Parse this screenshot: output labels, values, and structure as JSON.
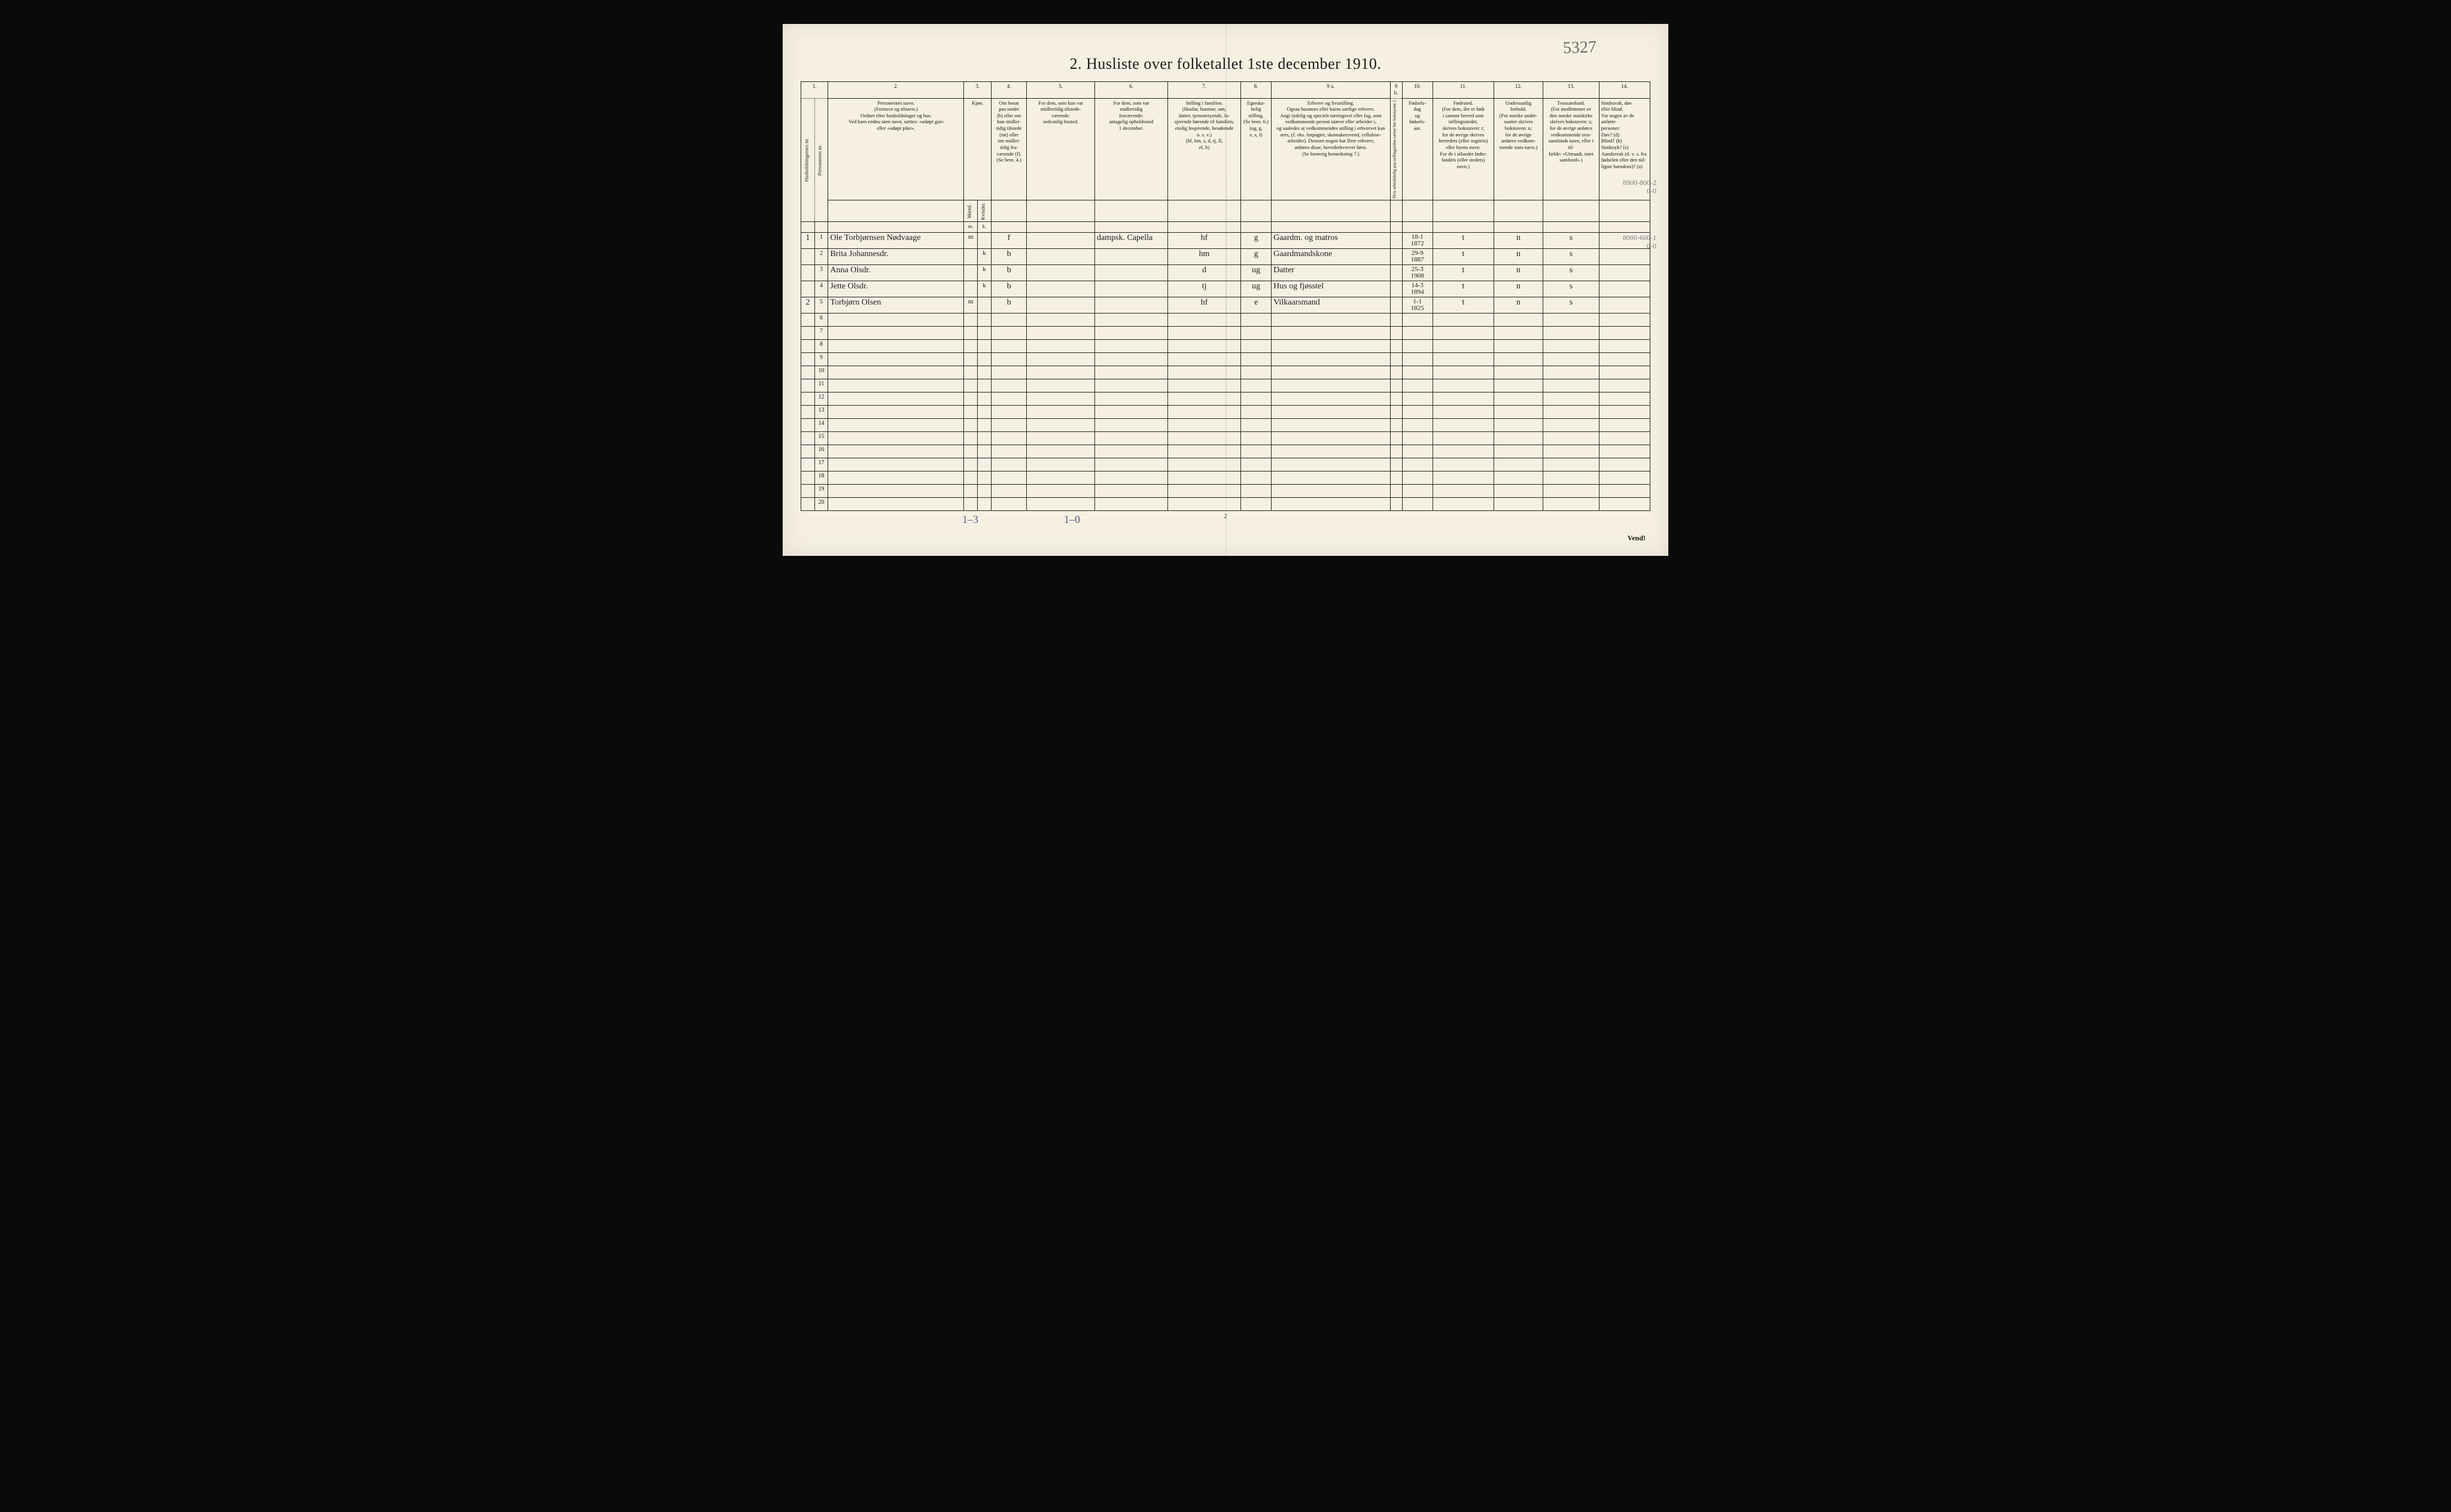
{
  "document": {
    "corner_note": "5327",
    "title": "2.  Husliste over folketallet 1ste december 1910.",
    "page_number": "2",
    "vend": "Vend!",
    "bottom_annotation_left": "1–3",
    "bottom_annotation_right": "1–0",
    "margin_annotation_1": "8900-800-2",
    "margin_annotation_1b": "0-0",
    "margin_annotation_2": "8000-600-1",
    "margin_annotation_2b": "0-0"
  },
  "columns": {
    "nums": [
      "1.",
      "",
      "2.",
      "3.",
      "4.",
      "5.",
      "6.",
      "7.",
      "8.",
      "9 a.",
      "9 b.",
      "10.",
      "11.",
      "12.",
      "13.",
      "14."
    ],
    "h1": "",
    "h2": "",
    "h3": "Personernes navn.\n(Fornavn og tilnavn.)\nOrdnet efter husholdninger og hus.\nVed barn endnu uten navn, sættes: «udøpt gut»\neller «udøpt pike».",
    "h4": "Kjøn.",
    "h5": "Om bosat\npaa stedet\n(b) eller om\nkun midler-\ntidig tilstede\n(mt) eller\nom midler-\ntidig fra-\nværende (f).\n(Se bem. 4.)",
    "h6": "For dem, som kun var\nmidlertidig tilstede-\nværende:\nsedvanlig bosted.",
    "h7": "For dem, som var\nmidlertidig\nfraværende:\nantagelig opholdssted\n1 december.",
    "h8": "Stilling i familien.\n(Husfar, husmor, søn,\ndatter, tjenestetyende, lo-\nsjerende hørende til familien,\nenslig losjerende, besøkende\no. s. v.)\n(hf, hm, s, d, tj, fl,\nel, b)",
    "h9": "Egteska-\nbelig\nstilling.\n(Se bem. 6.)\n(ug, g,\ne, s, f)",
    "h10": "Erhverv og livsstilling.\nOgsaa husmors eller barns særlige erhverv.\nAngi tydelig og specielt næringsvei eller fag, som\nvedkommende person utøver eller arbeider i,\nog saaledes at vedkommendes stilling i erhvervet kan\nsees, (f. eks. forpagter, skomakersvend, cellulose-\narbeider). Dersom nogen har flere erhverv,\nanføres disse, hovederkvervet først.\n(Se forøvrig bemerkning 7.)",
    "h10b": "Hvis arbeidsledig\npaa tællingstiden sættes\nher bokstaven: l.",
    "h11": "Fødsels-\ndag\nog\nfødsels-\naar.",
    "h12": "Fødested.\n(For dem, der er født\ni samme herred som\ntællingsstedet,\nskrives bokstaven: t;\nfor de øvrige skrives\nherredets (eller sognets)\neller byens navn.\nFor de i utlandet fødte:\nlandets (eller stedets)\nnavn.)",
    "h13": "Undersaatlig\nforhold.\n(For norske under-\nsaatter skrives\nbokstaven: n;\nfor de øvrige\nanføres vedkom-\nmende stats navn.)",
    "h14": "Trossamfund.\n(For medlemmer av\nden norske statskirke\nskrives bokstaven: s;\nfor de øvrige anføres\nvedkommende tros-\nsamfunds navn, eller i til-\nfælde: «Uttraadt, intet\nsamfund».)",
    "h15": "Sindssvak, døv\neller blind.\nVar nogen av de anførte\npersoner:\nDøv?       (d)\nBlind?     (b)\nSindssyk? (s)\nAandssvak (d. v. s. fra\nfødselen eller den tid-\nligste barndom)? (a)",
    "sub_left": "Husholdningernes nr.",
    "sub_right": "Personernes nr.",
    "sub_m": "Mænd.",
    "sub_k": "Kvinder.",
    "sub_mk_m": "m.",
    "sub_mk_k": "k."
  },
  "rows": [
    {
      "hh": "1",
      "pn": "1",
      "name": "Ole Torbjørnsen Nødvaage",
      "m": "m",
      "k": "",
      "bos": "f",
      "mt": "",
      "fr": "dampsk. Capella",
      "fam": "hf",
      "eg": "g",
      "erhv": "Gaardm. og matros",
      "l": "",
      "fd": "18-1\n1872",
      "fs": "t",
      "us": "n",
      "tr": "s",
      "sd": ""
    },
    {
      "hh": "",
      "pn": "2",
      "name": "Brita Johannesdr.",
      "m": "",
      "k": "k",
      "bos": "b",
      "mt": "",
      "fr": "",
      "fam": "hm",
      "eg": "g",
      "erhv": "Gaardmandskone",
      "l": "",
      "fd": "29-9\n1887",
      "fs": "t",
      "us": "n",
      "tr": "s",
      "sd": ""
    },
    {
      "hh": "",
      "pn": "3",
      "name": "Anna Olsdr.",
      "m": "",
      "k": "k",
      "bos": "b",
      "mt": "",
      "fr": "",
      "fam": "d",
      "eg": "ug",
      "erhv": "Datter",
      "l": "",
      "fd": "25-3\n1908",
      "fs": "t",
      "us": "n",
      "tr": "s",
      "sd": ""
    },
    {
      "hh": "",
      "pn": "4",
      "name": "Jette Olsdr.",
      "m": "",
      "k": "k",
      "bos": "b",
      "mt": "",
      "fr": "",
      "fam": "tj",
      "eg": "ug",
      "erhv": "Hus og fjøsstel",
      "l": "",
      "fd": "14-3\n1894",
      "fs": "t",
      "us": "n",
      "tr": "s",
      "sd": ""
    },
    {
      "hh": "2",
      "pn": "5",
      "name": "Torbjørn Olsen",
      "m": "m",
      "k": "",
      "bos": "b",
      "mt": "",
      "fr": "",
      "fam": "hf",
      "eg": "e",
      "erhv": "Vilkaarsmand",
      "l": "",
      "fd": "1-1\n1825",
      "fs": "t",
      "us": "n",
      "tr": "s",
      "sd": ""
    }
  ],
  "empty_rows": [
    "6",
    "7",
    "8",
    "9",
    "10",
    "11",
    "12",
    "13",
    "14",
    "15",
    "16",
    "17",
    "18",
    "19",
    "20"
  ]
}
